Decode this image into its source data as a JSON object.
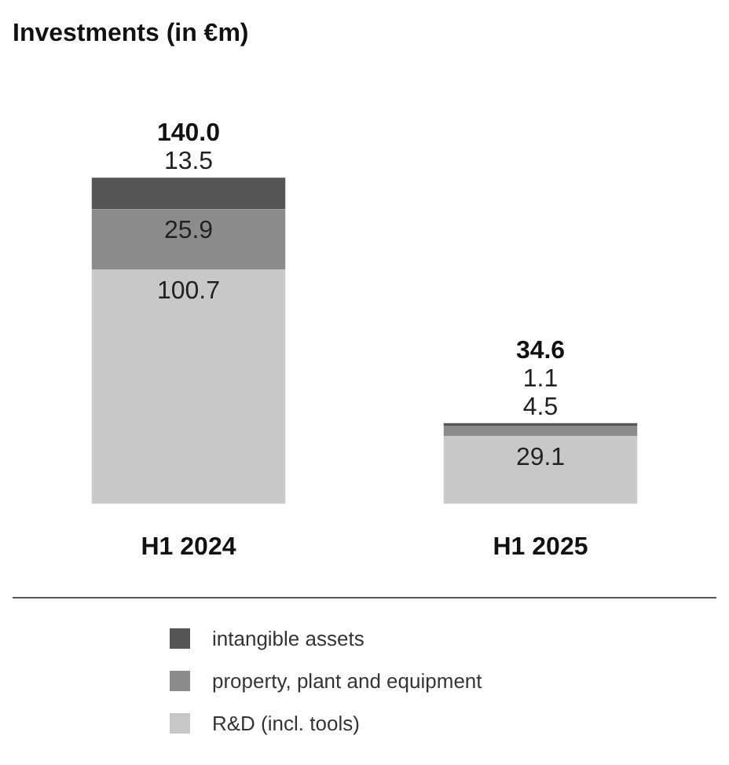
{
  "chart_data": {
    "type": "bar",
    "title": "Investments (in €m)",
    "categories": [
      "H1 2024",
      "H1 2025"
    ],
    "stacked": true,
    "data_labels": true,
    "totals": [
      "140.0",
      "34.6"
    ],
    "legend": "bottom",
    "series": [
      {
        "name": "R&D (incl. tools)",
        "color": "#c8c8c8",
        "values": [
          100.7,
          29.1
        ]
      },
      {
        "name": "property, plant and equipment",
        "color": "#8c8c8c",
        "values": [
          25.9,
          4.5
        ]
      },
      {
        "name": "intangible assets",
        "color": "#555555",
        "values": [
          13.5,
          1.1
        ]
      }
    ]
  }
}
